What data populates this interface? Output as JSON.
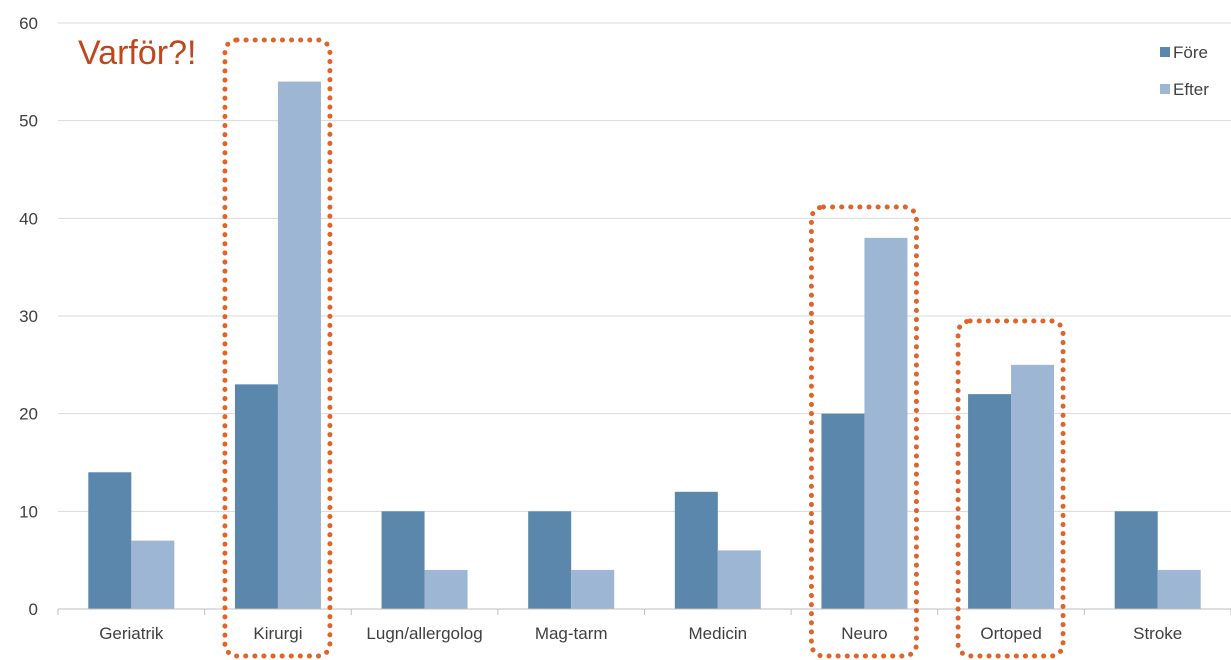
{
  "chart_data": {
    "type": "bar",
    "categories": [
      "Geriatrik",
      "Kirurgi",
      "Lugn/allergolog",
      "Mag-tarm",
      "Medicin",
      "Neuro",
      "Ortoped",
      "Stroke"
    ],
    "series": [
      {
        "name": "Före",
        "values": [
          14,
          23,
          10,
          10,
          12,
          20,
          22,
          10
        ],
        "color": "#5b87ad"
      },
      {
        "name": "Efter",
        "values": [
          7,
          54,
          4,
          4,
          6,
          38,
          25,
          4
        ],
        "color": "#9db6d4"
      }
    ],
    "ylim": [
      0,
      60
    ],
    "yticks": [
      0,
      10,
      20,
      30,
      40,
      50,
      60
    ],
    "grid": true,
    "legend_position": "top-right",
    "annotation": {
      "text": "Varför?!",
      "color": "#c0471d",
      "highlighted_categories": [
        "Kirurgi",
        "Neuro",
        "Ortoped"
      ],
      "highlight_color": "#e0632a"
    }
  }
}
